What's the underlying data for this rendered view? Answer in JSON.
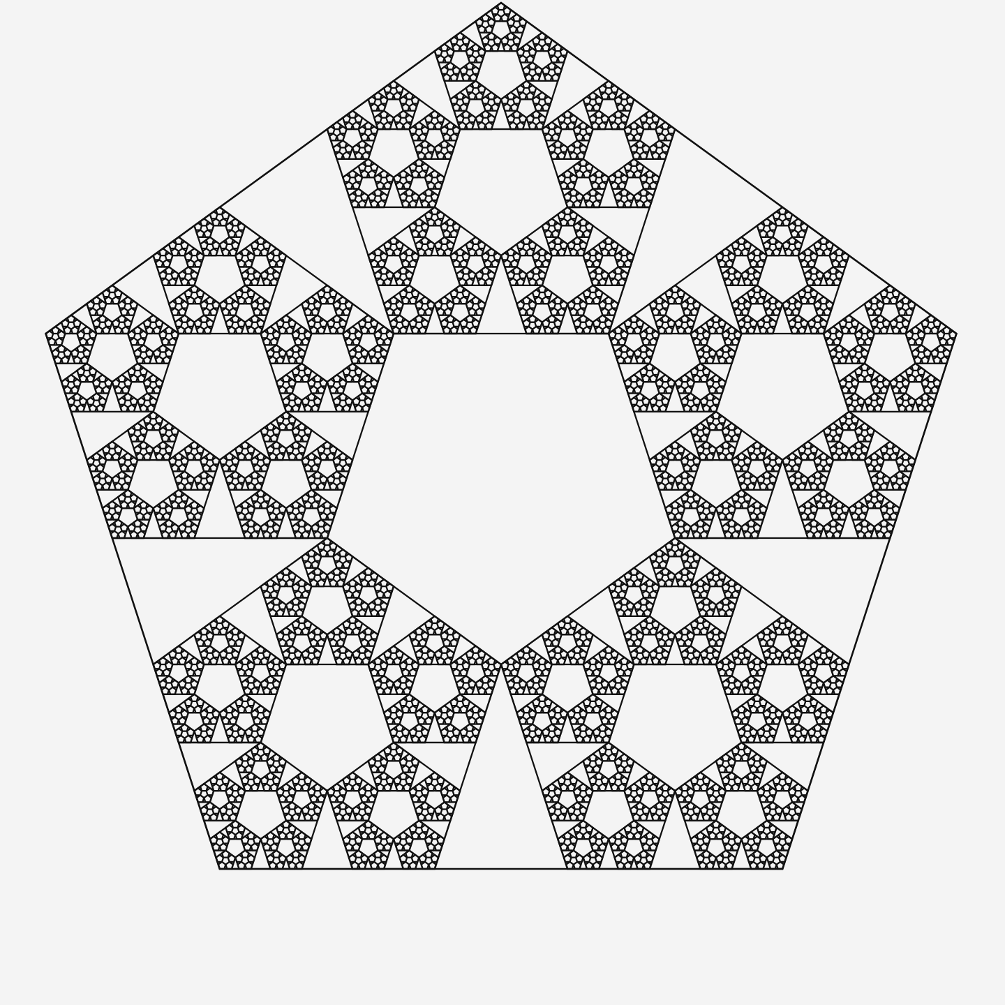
{
  "figure": {
    "name": "pentaflake-fractal",
    "shape": "regular pentagon",
    "depth": 5,
    "copies_per_level": 5,
    "background_color": "#f4f4f4",
    "line_color": "#111111"
  }
}
